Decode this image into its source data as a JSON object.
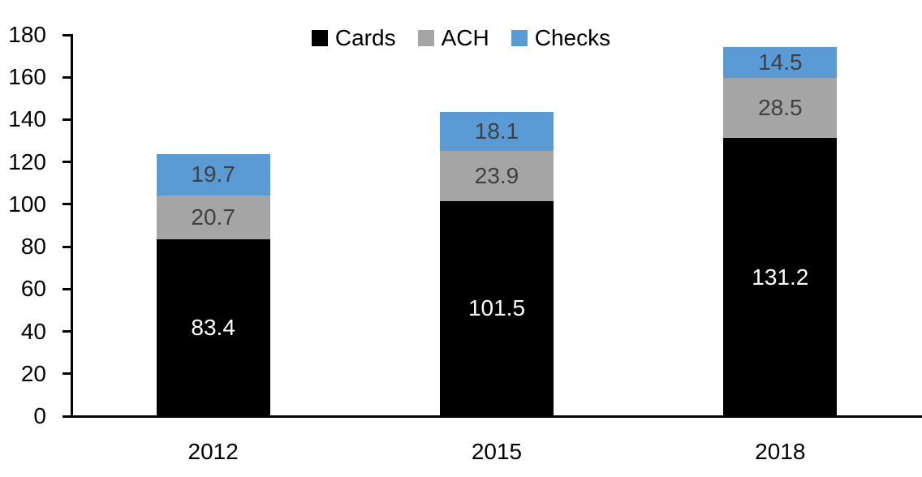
{
  "chart_data": {
    "type": "bar",
    "stacked": true,
    "title": "",
    "xlabel": "",
    "ylabel": "",
    "categories": [
      "2012",
      "2015",
      "2018"
    ],
    "series": [
      {
        "name": "Cards",
        "color": "#000000",
        "label_color": "#ffffff",
        "values": [
          83.4,
          101.5,
          131.2
        ]
      },
      {
        "name": "ACH",
        "color": "#a5a5a5",
        "label_color": "#404040",
        "values": [
          20.7,
          23.9,
          28.5
        ]
      },
      {
        "name": "Checks",
        "color": "#5b9bd5",
        "label_color": "#404040",
        "values": [
          19.7,
          18.1,
          14.5
        ]
      }
    ],
    "totals": [
      123.8,
      143.5,
      174.2
    ],
    "ylim": [
      0,
      180
    ],
    "ytick_step": 20,
    "yticks": [
      0,
      20,
      40,
      60,
      80,
      100,
      120,
      140,
      160,
      180
    ],
    "grid": false,
    "legend_position": "top-center",
    "axis_color": "#000000",
    "tick_label_color": "#000000"
  }
}
